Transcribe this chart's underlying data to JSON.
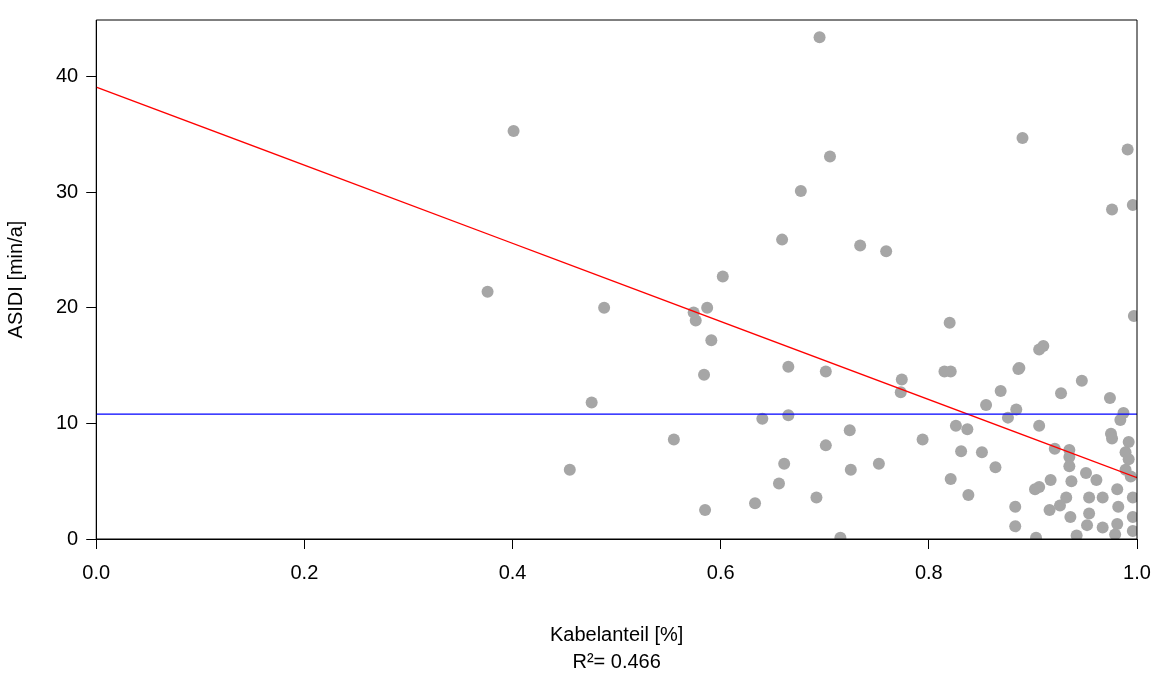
{
  "chart_data": {
    "type": "scatter",
    "xlabel": "Kabelanteil [%]",
    "ylabel": "ASIDI [min/a]",
    "annotations": [
      "R²= 0.466"
    ],
    "xlim": [
      0,
      1
    ],
    "ylim": [
      0,
      44.9
    ],
    "xticks": [
      {
        "value": 0,
        "label": "0.0"
      },
      0.2,
      0.4,
      0.6,
      0.8,
      {
        "value": 1,
        "label": "1.0"
      }
    ],
    "yticks": [
      0,
      10,
      20,
      30,
      40
    ],
    "grid": false,
    "legend": false,
    "marker": "circle",
    "series": [
      {
        "type": "scatter",
        "color": "#a6a6a6",
        "x": [
          0.376,
          0.401,
          0.476,
          0.455,
          0.488,
          0.555,
          0.574,
          0.576,
          0.587,
          0.591,
          0.584,
          0.602,
          0.585,
          0.633,
          0.64,
          0.656,
          0.661,
          0.659,
          0.665,
          0.665,
          0.677,
          0.695,
          0.705,
          0.701,
          0.701,
          0.692,
          0.715,
          0.724,
          0.725,
          0.734,
          0.759,
          0.752,
          0.774,
          0.773,
          0.794,
          0.82,
          0.815,
          0.821,
          0.821,
          0.826,
          0.831,
          0.837,
          0.838,
          0.855,
          0.851,
          0.864,
          0.869,
          0.884,
          0.876,
          0.887,
          0.886,
          0.89,
          0.906,
          0.91,
          0.906,
          0.927,
          0.947,
          0.974,
          0.976,
          0.987,
          0.984,
          0.991,
          0.997,
          0.996,
          0.921,
          0.935,
          0.935,
          0.935,
          0.975,
          0.976,
          0.989,
          0.992,
          0.951,
          0.961,
          0.937,
          0.917,
          0.906,
          0.902,
          0.883,
          0.883,
          0.903,
          0.932,
          0.926,
          0.916,
          0.936,
          0.954,
          0.967,
          0.954,
          0.952,
          0.967,
          0.942,
          0.981,
          0.982,
          0.981,
          0.979,
          0.992,
          0.994,
          0.996,
          0.996,
          0.996,
          0.989
        ],
        "values": [
          21.4,
          35.3,
          11.8,
          6.0,
          20.0,
          8.6,
          19.6,
          18.9,
          20.0,
          17.2,
          14.2,
          22.7,
          2.5,
          3.1,
          10.4,
          4.8,
          6.5,
          25.9,
          14.9,
          10.7,
          30.1,
          43.4,
          33.1,
          14.5,
          8.1,
          3.6,
          0.1,
          9.4,
          6.0,
          25.4,
          24.9,
          6.5,
          13.8,
          12.7,
          8.6,
          18.7,
          14.5,
          14.5,
          5.2,
          9.8,
          7.6,
          9.5,
          3.8,
          11.6,
          7.5,
          6.2,
          12.8,
          11.2,
          10.5,
          14.8,
          14.7,
          34.7,
          9.8,
          16.7,
          16.4,
          12.6,
          13.7,
          12.2,
          28.5,
          10.9,
          10.3,
          33.7,
          19.3,
          28.9,
          7.8,
          7.7,
          7.1,
          6.3,
          9.1,
          8.7,
          7.5,
          8.4,
          5.7,
          5.1,
          5.0,
          5.1,
          4.5,
          4.3,
          2.8,
          1.1,
          0.1,
          3.6,
          2.9,
          2.5,
          1.9,
          3.6,
          3.6,
          2.2,
          1.2,
          1.0,
          0.3,
          4.3,
          2.8,
          1.3,
          0.4,
          6.9,
          5.4,
          3.6,
          1.9,
          0.7,
          6.0
        ]
      },
      {
        "type": "line",
        "color": "#ff0000",
        "x": [
          0,
          1
        ],
        "values": [
          39.1,
          5.3
        ],
        "marker": "none"
      }
    ],
    "ref_lines": [
      {
        "axis": "y",
        "value": 10.8,
        "color": "#0000ff"
      }
    ]
  }
}
